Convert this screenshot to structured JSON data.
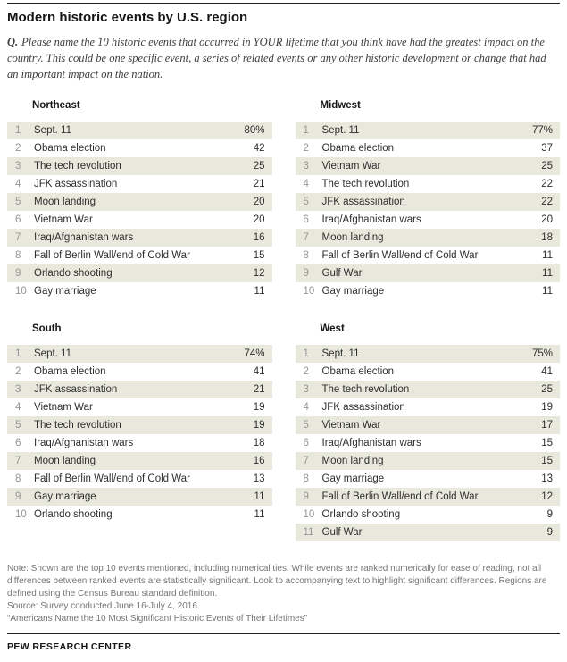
{
  "header": {
    "title": "Modern historic events by U.S. region",
    "question_prefix": "Q.",
    "question_text": "Please name the 10 historic events that occurred in YOUR lifetime that you think have had the greatest impact on the country. This could be one specific event, a series of related events or any other historic development or change that had an important impact on the nation."
  },
  "chart_data": {
    "type": "table",
    "title": "Modern historic events by U.S. region",
    "tables": [
      {
        "region": "Northeast",
        "rows": [
          {
            "rank": 1,
            "event": "Sept. 11",
            "value": "80%"
          },
          {
            "rank": 2,
            "event": "Obama election",
            "value": "42"
          },
          {
            "rank": 3,
            "event": "The tech revolution",
            "value": "25"
          },
          {
            "rank": 4,
            "event": "JFK assassination",
            "value": "21"
          },
          {
            "rank": 5,
            "event": "Moon landing",
            "value": "20"
          },
          {
            "rank": 6,
            "event": "Vietnam War",
            "value": "20"
          },
          {
            "rank": 7,
            "event": "Iraq/Afghanistan wars",
            "value": "16"
          },
          {
            "rank": 8,
            "event": "Fall of Berlin Wall/end of Cold War",
            "value": "15"
          },
          {
            "rank": 9,
            "event": "Orlando shooting",
            "value": "12"
          },
          {
            "rank": 10,
            "event": "Gay marriage",
            "value": "11"
          }
        ]
      },
      {
        "region": "Midwest",
        "rows": [
          {
            "rank": 1,
            "event": "Sept. 11",
            "value": "77%"
          },
          {
            "rank": 2,
            "event": "Obama election",
            "value": "37"
          },
          {
            "rank": 3,
            "event": "Vietnam War",
            "value": "25"
          },
          {
            "rank": 4,
            "event": "The tech revolution",
            "value": "22"
          },
          {
            "rank": 5,
            "event": "JFK assassination",
            "value": "22"
          },
          {
            "rank": 6,
            "event": "Iraq/Afghanistan wars",
            "value": "20"
          },
          {
            "rank": 7,
            "event": "Moon landing",
            "value": "18"
          },
          {
            "rank": 8,
            "event": "Fall of Berlin Wall/end of Cold War",
            "value": "11"
          },
          {
            "rank": 9,
            "event": "Gulf War",
            "value": "11"
          },
          {
            "rank": 10,
            "event": "Gay marriage",
            "value": "11"
          }
        ]
      },
      {
        "region": "South",
        "rows": [
          {
            "rank": 1,
            "event": "Sept. 11",
            "value": "74%"
          },
          {
            "rank": 2,
            "event": "Obama election",
            "value": "41"
          },
          {
            "rank": 3,
            "event": "JFK assassination",
            "value": "21"
          },
          {
            "rank": 4,
            "event": "Vietnam War",
            "value": "19"
          },
          {
            "rank": 5,
            "event": "The tech revolution",
            "value": "19"
          },
          {
            "rank": 6,
            "event": "Iraq/Afghanistan wars",
            "value": "18"
          },
          {
            "rank": 7,
            "event": "Moon landing",
            "value": "16"
          },
          {
            "rank": 8,
            "event": "Fall of Berlin Wall/end of Cold War",
            "value": "13"
          },
          {
            "rank": 9,
            "event": "Gay marriage",
            "value": "11"
          },
          {
            "rank": 10,
            "event": "Orlando shooting",
            "value": "11"
          }
        ]
      },
      {
        "region": "West",
        "rows": [
          {
            "rank": 1,
            "event": "Sept. 11",
            "value": "75%"
          },
          {
            "rank": 2,
            "event": "Obama election",
            "value": "41"
          },
          {
            "rank": 3,
            "event": "The tech revolution",
            "value": "25"
          },
          {
            "rank": 4,
            "event": "JFK assassination",
            "value": "19"
          },
          {
            "rank": 5,
            "event": "Vietnam War",
            "value": "17"
          },
          {
            "rank": 6,
            "event": "Iraq/Afghanistan wars",
            "value": "15"
          },
          {
            "rank": 7,
            "event": "Moon landing",
            "value": "15"
          },
          {
            "rank": 8,
            "event": "Gay marriage",
            "value": "13"
          },
          {
            "rank": 9,
            "event": "Fall of Berlin Wall/end of Cold War",
            "value": "12"
          },
          {
            "rank": 10,
            "event": "Orlando shooting",
            "value": "9"
          },
          {
            "rank": 11,
            "event": "Gulf War",
            "value": "9"
          }
        ]
      }
    ]
  },
  "notes": {
    "note": "Note: Shown are the top 10 events mentioned, including numerical ties. While events are ranked numerically for ease of reading, not all differences between ranked events are statistically significant. Look to accompanying text to highlight significant differences. Regions are defined using the Census Bureau standard definition.",
    "source": "Source: Survey conducted June 16-July 4, 2016.",
    "report": "“Americans Name the 10 Most Significant Historic Events of Their Lifetimes”"
  },
  "footer": {
    "brand": "PEW RESEARCH CENTER"
  },
  "colors": {
    "stripe": "#e9e8dc",
    "rule": "#231f20"
  }
}
